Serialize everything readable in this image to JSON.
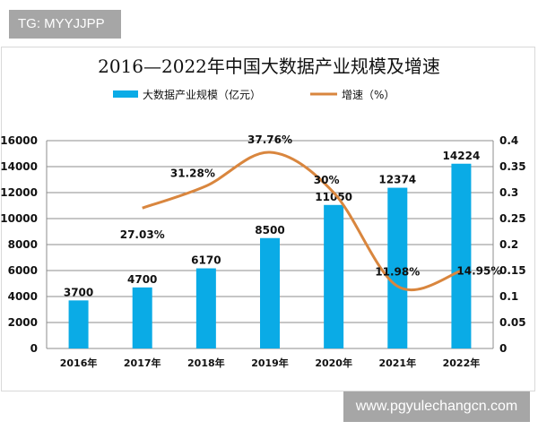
{
  "watermarks": {
    "top_left": "TG: MYYJJPP",
    "bottom_right": "www.pgyulechangcn.com"
  },
  "chart_data": {
    "type": "bar+line",
    "title": "2016—2022年中国大数据产业规模及增速",
    "categories": [
      "2016年",
      "2017年",
      "2018年",
      "2019年",
      "2020年",
      "2021年",
      "2022年"
    ],
    "series": [
      {
        "name": "大数据产业规模（亿元）",
        "type": "bar",
        "axis": "left",
        "color": "#0aabe6",
        "values": [
          3700,
          4700,
          6170,
          8500,
          11050,
          12374,
          14224
        ],
        "labels": [
          "3700",
          "4700",
          "6170",
          "8500",
          "11050",
          "12374",
          "14224"
        ]
      },
      {
        "name": "增速（%）",
        "type": "line",
        "axis": "right",
        "color": "#d9863e",
        "values": [
          null,
          0.2703,
          0.3128,
          0.3776,
          0.3,
          0.1198,
          0.1495
        ],
        "labels": [
          "",
          "27.03%",
          "31.28%",
          "37.76%",
          "30%",
          "11.98%",
          "14.95%"
        ]
      }
    ],
    "left_axis": {
      "range": [
        0,
        16000
      ],
      "ticks": [
        "0",
        "2000",
        "4000",
        "6000",
        "8000",
        "10000",
        "12000",
        "14000",
        "16000"
      ]
    },
    "right_axis": {
      "range": [
        0,
        0.4
      ],
      "ticks": [
        "0",
        "0.05",
        "0.1",
        "0.15",
        "0.2",
        "0.25",
        "0.3",
        "0.35",
        "0.4"
      ]
    },
    "grid": true,
    "legend": "top"
  }
}
